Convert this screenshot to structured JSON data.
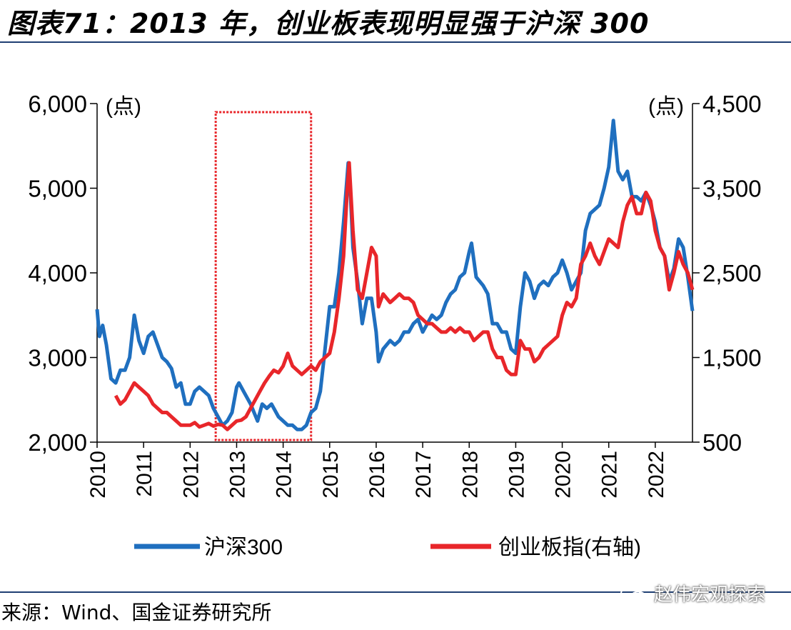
{
  "title": "图表71：2013 年，创业板表现明显强于沪深 300",
  "source": "来源：Wind、国金证券研究所",
  "watermark": "赵伟宏观探索",
  "chart_data": {
    "type": "line",
    "y_unit_left": "(点)",
    "y_unit_right": "(点)",
    "x_ticks": [
      "2010",
      "2011",
      "2012",
      "2013",
      "2014",
      "2015",
      "2016",
      "2017",
      "2018",
      "2019",
      "2020",
      "2021",
      "2022"
    ],
    "y_left_ticks": [
      "2,000",
      "3,000",
      "4,000",
      "5,000",
      "6,000"
    ],
    "y_right_ticks": [
      "500",
      "1,500",
      "2,500",
      "3,500",
      "4,500"
    ],
    "y_left_range": [
      2000,
      6000
    ],
    "y_right_range": [
      500,
      4500
    ],
    "x_range": [
      2010.0,
      2022.8
    ],
    "legend_position": "bottom",
    "highlight_box": {
      "x_start": 2012.55,
      "x_end": 2014.6
    },
    "series": [
      {
        "name": "沪深300",
        "axis": "left",
        "color": "#1f6fbf",
        "points": [
          [
            2010.0,
            3570
          ],
          [
            2010.05,
            3250
          ],
          [
            2010.12,
            3380
          ],
          [
            2010.2,
            3150
          ],
          [
            2010.3,
            2750
          ],
          [
            2010.4,
            2700
          ],
          [
            2010.5,
            2850
          ],
          [
            2010.6,
            2850
          ],
          [
            2010.7,
            3000
          ],
          [
            2010.8,
            3500
          ],
          [
            2010.9,
            3200
          ],
          [
            2011.0,
            3050
          ],
          [
            2011.1,
            3250
          ],
          [
            2011.2,
            3300
          ],
          [
            2011.3,
            3150
          ],
          [
            2011.4,
            3000
          ],
          [
            2011.5,
            2950
          ],
          [
            2011.6,
            2870
          ],
          [
            2011.7,
            2650
          ],
          [
            2011.8,
            2700
          ],
          [
            2011.9,
            2450
          ],
          [
            2012.0,
            2450
          ],
          [
            2012.1,
            2600
          ],
          [
            2012.2,
            2650
          ],
          [
            2012.3,
            2600
          ],
          [
            2012.4,
            2550
          ],
          [
            2012.5,
            2400
          ],
          [
            2012.6,
            2300
          ],
          [
            2012.7,
            2200
          ],
          [
            2012.8,
            2250
          ],
          [
            2012.9,
            2350
          ],
          [
            2013.0,
            2650
          ],
          [
            2013.05,
            2700
          ],
          [
            2013.15,
            2600
          ],
          [
            2013.3,
            2450
          ],
          [
            2013.45,
            2250
          ],
          [
            2013.55,
            2450
          ],
          [
            2013.65,
            2400
          ],
          [
            2013.75,
            2450
          ],
          [
            2013.9,
            2300
          ],
          [
            2014.0,
            2250
          ],
          [
            2014.1,
            2200
          ],
          [
            2014.2,
            2200
          ],
          [
            2014.3,
            2150
          ],
          [
            2014.4,
            2150
          ],
          [
            2014.5,
            2200
          ],
          [
            2014.6,
            2350
          ],
          [
            2014.7,
            2400
          ],
          [
            2014.8,
            2600
          ],
          [
            2014.9,
            3100
          ],
          [
            2015.0,
            3600
          ],
          [
            2015.1,
            3600
          ],
          [
            2015.2,
            4000
          ],
          [
            2015.3,
            4600
          ],
          [
            2015.4,
            5300
          ],
          [
            2015.45,
            4900
          ],
          [
            2015.5,
            4300
          ],
          [
            2015.6,
            3900
          ],
          [
            2015.7,
            3400
          ],
          [
            2015.8,
            3700
          ],
          [
            2015.9,
            3700
          ],
          [
            2016.0,
            3300
          ],
          [
            2016.05,
            2950
          ],
          [
            2016.15,
            3100
          ],
          [
            2016.3,
            3200
          ],
          [
            2016.4,
            3150
          ],
          [
            2016.5,
            3200
          ],
          [
            2016.6,
            3300
          ],
          [
            2016.7,
            3300
          ],
          [
            2016.8,
            3400
          ],
          [
            2016.9,
            3450
          ],
          [
            2017.0,
            3300
          ],
          [
            2017.1,
            3400
          ],
          [
            2017.2,
            3500
          ],
          [
            2017.3,
            3450
          ],
          [
            2017.4,
            3500
          ],
          [
            2017.5,
            3650
          ],
          [
            2017.6,
            3750
          ],
          [
            2017.7,
            3800
          ],
          [
            2017.8,
            3950
          ],
          [
            2017.9,
            4000
          ],
          [
            2018.0,
            4250
          ],
          [
            2018.05,
            4350
          ],
          [
            2018.15,
            3950
          ],
          [
            2018.3,
            3850
          ],
          [
            2018.4,
            3750
          ],
          [
            2018.5,
            3400
          ],
          [
            2018.6,
            3400
          ],
          [
            2018.7,
            3300
          ],
          [
            2018.8,
            3300
          ],
          [
            2018.9,
            3100
          ],
          [
            2019.0,
            3050
          ],
          [
            2019.1,
            3600
          ],
          [
            2019.2,
            4000
          ],
          [
            2019.3,
            3900
          ],
          [
            2019.4,
            3700
          ],
          [
            2019.5,
            3850
          ],
          [
            2019.6,
            3900
          ],
          [
            2019.7,
            3850
          ],
          [
            2019.8,
            3950
          ],
          [
            2019.9,
            4000
          ],
          [
            2020.0,
            4150
          ],
          [
            2020.1,
            4000
          ],
          [
            2020.2,
            3800
          ],
          [
            2020.3,
            3900
          ],
          [
            2020.4,
            4000
          ],
          [
            2020.5,
            4500
          ],
          [
            2020.6,
            4700
          ],
          [
            2020.7,
            4750
          ],
          [
            2020.8,
            4800
          ],
          [
            2020.9,
            5000
          ],
          [
            2021.0,
            5250
          ],
          [
            2021.1,
            5800
          ],
          [
            2021.2,
            5200
          ],
          [
            2021.3,
            5100
          ],
          [
            2021.4,
            5200
          ],
          [
            2021.5,
            4900
          ],
          [
            2021.6,
            4900
          ],
          [
            2021.7,
            4850
          ],
          [
            2021.8,
            4950
          ],
          [
            2021.9,
            4800
          ],
          [
            2022.0,
            4600
          ],
          [
            2022.1,
            4300
          ],
          [
            2022.2,
            4200
          ],
          [
            2022.3,
            3900
          ],
          [
            2022.4,
            4050
          ],
          [
            2022.5,
            4400
          ],
          [
            2022.6,
            4300
          ],
          [
            2022.7,
            3950
          ],
          [
            2022.8,
            3550
          ]
        ]
      },
      {
        "name": "创业板指(右轴)",
        "axis": "right",
        "color": "#e8262a",
        "points": [
          [
            2010.4,
            1050
          ],
          [
            2010.5,
            950
          ],
          [
            2010.6,
            1000
          ],
          [
            2010.7,
            1100
          ],
          [
            2010.8,
            1200
          ],
          [
            2010.9,
            1150
          ],
          [
            2011.0,
            1100
          ],
          [
            2011.1,
            1050
          ],
          [
            2011.2,
            950
          ],
          [
            2011.3,
            900
          ],
          [
            2011.4,
            850
          ],
          [
            2011.5,
            850
          ],
          [
            2011.6,
            800
          ],
          [
            2011.7,
            750
          ],
          [
            2011.8,
            700
          ],
          [
            2011.9,
            700
          ],
          [
            2012.0,
            700
          ],
          [
            2012.1,
            730
          ],
          [
            2012.2,
            680
          ],
          [
            2012.3,
            700
          ],
          [
            2012.4,
            720
          ],
          [
            2012.5,
            690
          ],
          [
            2012.6,
            710
          ],
          [
            2012.7,
            700
          ],
          [
            2012.8,
            650
          ],
          [
            2012.9,
            700
          ],
          [
            2013.0,
            750
          ],
          [
            2013.1,
            760
          ],
          [
            2013.2,
            800
          ],
          [
            2013.3,
            900
          ],
          [
            2013.4,
            1000
          ],
          [
            2013.5,
            1100
          ],
          [
            2013.6,
            1200
          ],
          [
            2013.7,
            1280
          ],
          [
            2013.8,
            1350
          ],
          [
            2013.9,
            1320
          ],
          [
            2014.0,
            1400
          ],
          [
            2014.1,
            1550
          ],
          [
            2014.2,
            1400
          ],
          [
            2014.3,
            1350
          ],
          [
            2014.4,
            1300
          ],
          [
            2014.5,
            1350
          ],
          [
            2014.6,
            1400
          ],
          [
            2014.7,
            1350
          ],
          [
            2014.8,
            1450
          ],
          [
            2014.9,
            1500
          ],
          [
            2015.0,
            1550
          ],
          [
            2015.1,
            1800
          ],
          [
            2015.2,
            2200
          ],
          [
            2015.3,
            2700
          ],
          [
            2015.38,
            3500
          ],
          [
            2015.42,
            3800
          ],
          [
            2015.5,
            3000
          ],
          [
            2015.6,
            2300
          ],
          [
            2015.7,
            2200
          ],
          [
            2015.8,
            2500
          ],
          [
            2015.9,
            2800
          ],
          [
            2016.0,
            2700
          ],
          [
            2016.05,
            2100
          ],
          [
            2016.15,
            2250
          ],
          [
            2016.3,
            2150
          ],
          [
            2016.4,
            2200
          ],
          [
            2016.5,
            2250
          ],
          [
            2016.6,
            2200
          ],
          [
            2016.7,
            2200
          ],
          [
            2016.8,
            2150
          ],
          [
            2016.9,
            2000
          ],
          [
            2017.0,
            1950
          ],
          [
            2017.1,
            1900
          ],
          [
            2017.2,
            1900
          ],
          [
            2017.3,
            1850
          ],
          [
            2017.4,
            1800
          ],
          [
            2017.5,
            1800
          ],
          [
            2017.6,
            1850
          ],
          [
            2017.7,
            1800
          ],
          [
            2017.8,
            1850
          ],
          [
            2017.9,
            1800
          ],
          [
            2018.0,
            1800
          ],
          [
            2018.1,
            1700
          ],
          [
            2018.2,
            1750
          ],
          [
            2018.3,
            1800
          ],
          [
            2018.4,
            1800
          ],
          [
            2018.5,
            1600
          ],
          [
            2018.6,
            1500
          ],
          [
            2018.7,
            1500
          ],
          [
            2018.8,
            1350
          ],
          [
            2018.9,
            1300
          ],
          [
            2019.0,
            1300
          ],
          [
            2019.1,
            1700
          ],
          [
            2019.2,
            1600
          ],
          [
            2019.3,
            1600
          ],
          [
            2019.4,
            1450
          ],
          [
            2019.5,
            1500
          ],
          [
            2019.6,
            1600
          ],
          [
            2019.7,
            1650
          ],
          [
            2019.8,
            1700
          ],
          [
            2019.9,
            1750
          ],
          [
            2020.0,
            2000
          ],
          [
            2020.1,
            2150
          ],
          [
            2020.2,
            2100
          ],
          [
            2020.3,
            2200
          ],
          [
            2020.4,
            2600
          ],
          [
            2020.5,
            2700
          ],
          [
            2020.6,
            2850
          ],
          [
            2020.7,
            2700
          ],
          [
            2020.8,
            2600
          ],
          [
            2020.9,
            2750
          ],
          [
            2021.0,
            2900
          ],
          [
            2021.1,
            2850
          ],
          [
            2021.2,
            2800
          ],
          [
            2021.3,
            3100
          ],
          [
            2021.4,
            3300
          ],
          [
            2021.5,
            3400
          ],
          [
            2021.6,
            3200
          ],
          [
            2021.7,
            3200
          ],
          [
            2021.8,
            3450
          ],
          [
            2021.9,
            3350
          ],
          [
            2022.0,
            3000
          ],
          [
            2022.1,
            2800
          ],
          [
            2022.2,
            2700
          ],
          [
            2022.3,
            2300
          ],
          [
            2022.4,
            2500
          ],
          [
            2022.5,
            2750
          ],
          [
            2022.6,
            2600
          ],
          [
            2022.7,
            2500
          ],
          [
            2022.8,
            2300
          ]
        ]
      }
    ]
  }
}
